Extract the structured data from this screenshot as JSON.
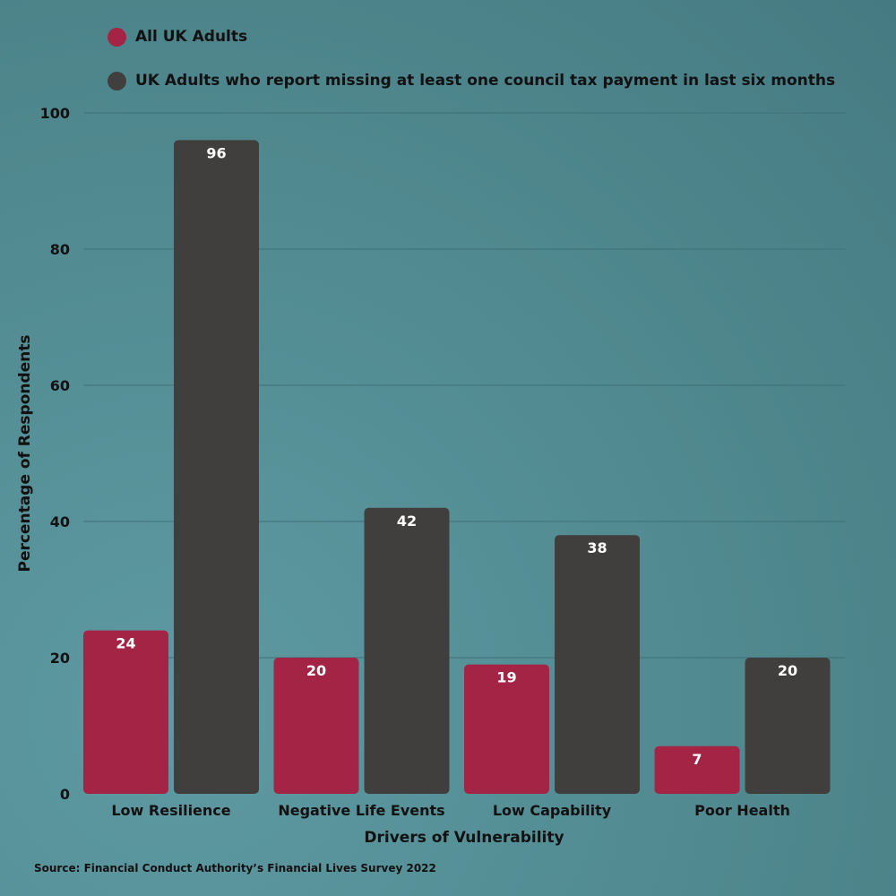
{
  "chart_data": {
    "type": "bar",
    "categories": [
      "Low Resilience",
      "Negative Life Events",
      "Low Capability",
      "Poor Health"
    ],
    "series": [
      {
        "name": "All UK Adults",
        "color": "#a32445",
        "values": [
          24,
          20,
          19,
          7
        ]
      },
      {
        "name": "UK Adults who report missing at least one council tax payment in last six months",
        "color": "#413f3e",
        "values": [
          96,
          42,
          38,
          20
        ]
      }
    ],
    "title": "",
    "xlabel": "Drivers of Vulnerability",
    "ylabel": "Percentage of Respondents",
    "ylim": [
      0,
      100
    ],
    "yticks": [
      0,
      20,
      40,
      60,
      80,
      100
    ],
    "grid": true,
    "legend_position": "top-left",
    "data_labels": true
  },
  "source": "Source: Financial Conduct Authority’s Financial Lives Survey 2022"
}
